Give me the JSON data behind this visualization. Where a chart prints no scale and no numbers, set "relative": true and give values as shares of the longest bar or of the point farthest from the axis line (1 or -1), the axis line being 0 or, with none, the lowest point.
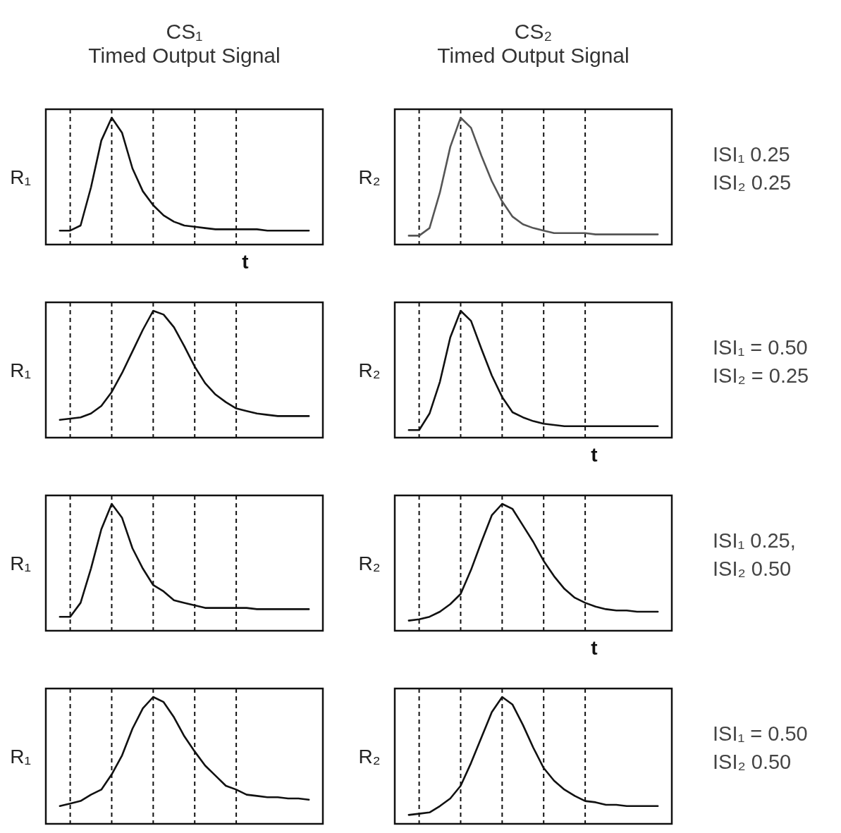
{
  "chart_data": [
    {
      "type": "line",
      "title": "CS₁",
      "subtitle": "Timed Output Signal",
      "ylabel": "R₁",
      "xlabel": "t",
      "relative": true,
      "grid": "x",
      "line_style": "solid",
      "categories": [
        null,
        null,
        null,
        null,
        null,
        null,
        null,
        null,
        null,
        null,
        null,
        null,
        null,
        null,
        null,
        null,
        null,
        null,
        null,
        null,
        null,
        null,
        null,
        null,
        null
      ],
      "series": [
        {
          "color": "#111111",
          "values": [
            0.11,
            0.11,
            0.15,
            0.45,
            0.82,
            1,
            0.88,
            0.6,
            0.42,
            0.31,
            0.23,
            0.18,
            0.15,
            0.14,
            0.13,
            0.12,
            0.12,
            0.12,
            0.12,
            0.12,
            0.11,
            0.11,
            0.11,
            0.11,
            0.11
          ]
        }
      ]
    },
    {
      "type": "line",
      "title": "CS₂",
      "subtitle": "Timed Output Signal",
      "ylabel": "R₂",
      "relative": true,
      "grid": "x",
      "line_style": "solid",
      "annotations": [
        "ISI₁  0.25",
        "ISI₂  0.25"
      ],
      "categories": [
        null,
        null,
        null,
        null,
        null,
        null,
        null,
        null,
        null,
        null,
        null,
        null,
        null,
        null,
        null,
        null,
        null,
        null,
        null,
        null,
        null,
        null,
        null,
        null,
        null
      ],
      "series": [
        {
          "color": "#555555",
          "values": [
            0.07,
            0.07,
            0.13,
            0.41,
            0.77,
            1,
            0.92,
            0.7,
            0.5,
            0.34,
            0.22,
            0.16,
            0.13,
            0.11,
            0.09,
            0.09,
            0.09,
            0.09,
            0.08,
            0.08,
            0.08,
            0.08,
            0.08,
            0.08,
            0.08
          ]
        }
      ]
    },
    {
      "type": "line",
      "ylabel": "R₁",
      "relative": true,
      "grid": "x",
      "line_style": "solid",
      "categories": [
        null,
        null,
        null,
        null,
        null,
        null,
        null,
        null,
        null,
        null,
        null,
        null,
        null,
        null,
        null,
        null,
        null,
        null,
        null,
        null,
        null,
        null,
        null,
        null,
        null
      ],
      "series": [
        {
          "color": "#111111",
          "values": [
            0.14,
            0.15,
            0.16,
            0.19,
            0.25,
            0.36,
            0.51,
            0.68,
            0.85,
            1,
            0.97,
            0.87,
            0.72,
            0.56,
            0.43,
            0.34,
            0.28,
            0.23,
            0.21,
            0.19,
            0.18,
            0.17,
            0.17,
            0.17,
            0.17
          ]
        }
      ]
    },
    {
      "type": "line",
      "ylabel": "R₂",
      "xlabel": "t",
      "relative": true,
      "grid": "x",
      "line_style": "solid",
      "annotations": [
        "ISI₁ = 0.50",
        "ISI₂ = 0.25"
      ],
      "categories": [
        null,
        null,
        null,
        null,
        null,
        null,
        null,
        null,
        null,
        null,
        null,
        null,
        null,
        null,
        null,
        null,
        null,
        null,
        null,
        null,
        null,
        null,
        null,
        null,
        null
      ],
      "series": [
        {
          "color": "#111111",
          "values": [
            0.06,
            0.06,
            0.19,
            0.44,
            0.79,
            1,
            0.92,
            0.7,
            0.49,
            0.32,
            0.2,
            0.16,
            0.13,
            0.11,
            0.1,
            0.09,
            0.09,
            0.09,
            0.09,
            0.09,
            0.09,
            0.09,
            0.09,
            0.09,
            0.09
          ]
        }
      ]
    },
    {
      "type": "line",
      "ylabel": "R₁",
      "relative": true,
      "grid": "x",
      "line_style": "solid",
      "categories": [
        null,
        null,
        null,
        null,
        null,
        null,
        null,
        null,
        null,
        null,
        null,
        null,
        null,
        null,
        null,
        null,
        null,
        null,
        null,
        null,
        null,
        null,
        null,
        null,
        null
      ],
      "series": [
        {
          "color": "#111111",
          "values": [
            0.11,
            0.11,
            0.22,
            0.49,
            0.8,
            1,
            0.89,
            0.65,
            0.49,
            0.36,
            0.31,
            0.24,
            0.22,
            0.2,
            0.18,
            0.18,
            0.18,
            0.18,
            0.18,
            0.17,
            0.17,
            0.17,
            0.17,
            0.17,
            0.17
          ]
        }
      ]
    },
    {
      "type": "line",
      "ylabel": "R₂",
      "xlabel": "t",
      "relative": true,
      "grid": "x",
      "line_style": "solid",
      "annotations": [
        "ISI₁  0.25,",
        "ISI₂  0.50"
      ],
      "categories": [
        null,
        null,
        null,
        null,
        null,
        null,
        null,
        null,
        null,
        null,
        null,
        null,
        null,
        null,
        null,
        null,
        null,
        null,
        null,
        null,
        null,
        null,
        null,
        null,
        null
      ],
      "series": [
        {
          "color": "#111111",
          "values": [
            0.08,
            0.09,
            0.11,
            0.15,
            0.21,
            0.29,
            0.48,
            0.7,
            0.91,
            1,
            0.96,
            0.83,
            0.7,
            0.55,
            0.43,
            0.33,
            0.26,
            0.22,
            0.19,
            0.17,
            0.16,
            0.16,
            0.15,
            0.15,
            0.15
          ]
        }
      ]
    },
    {
      "type": "line",
      "ylabel": "R₁",
      "relative": true,
      "grid": "x",
      "line_style": "solid",
      "categories": [
        null,
        null,
        null,
        null,
        null,
        null,
        null,
        null,
        null,
        null,
        null,
        null,
        null,
        null,
        null,
        null,
        null,
        null,
        null,
        null,
        null,
        null,
        null,
        null,
        null
      ],
      "series": [
        {
          "color": "#111111",
          "values": [
            0.14,
            0.16,
            0.18,
            0.23,
            0.27,
            0.39,
            0.54,
            0.75,
            0.91,
            1,
            0.96,
            0.84,
            0.69,
            0.57,
            0.46,
            0.38,
            0.3,
            0.27,
            0.23,
            0.22,
            0.21,
            0.21,
            0.2,
            0.2,
            0.19
          ]
        }
      ]
    },
    {
      "type": "line",
      "ylabel": "R₂",
      "relative": true,
      "grid": "x",
      "line_style": "solid",
      "annotations": [
        "ISI₁ = 0.50",
        "ISI₂  0.50"
      ],
      "categories": [
        null,
        null,
        null,
        null,
        null,
        null,
        null,
        null,
        null,
        null,
        null,
        null,
        null,
        null,
        null,
        null,
        null,
        null,
        null,
        null,
        null,
        null,
        null,
        null,
        null
      ],
      "series": [
        {
          "color": "#111111",
          "values": [
            0.07,
            0.08,
            0.09,
            0.14,
            0.2,
            0.3,
            0.48,
            0.68,
            0.88,
            1,
            0.94,
            0.78,
            0.6,
            0.44,
            0.34,
            0.27,
            0.22,
            0.18,
            0.17,
            0.15,
            0.15,
            0.14,
            0.14,
            0.14,
            0.14
          ]
        }
      ]
    }
  ]
}
